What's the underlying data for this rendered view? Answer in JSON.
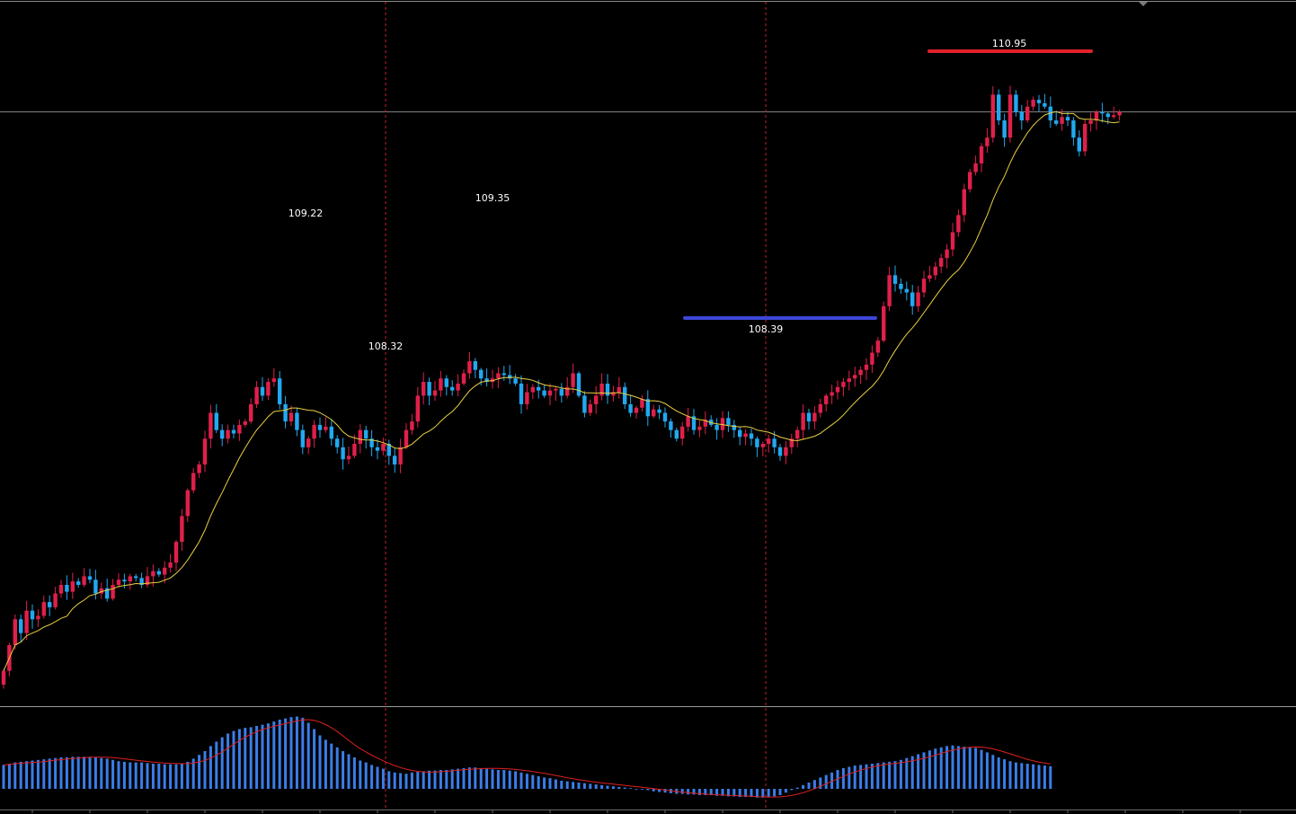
{
  "chart_data": {
    "type": "candlestick",
    "title": "",
    "xlabel": "",
    "ylabel": "",
    "ylim": [
      107.3,
      111.4
    ],
    "colors": {
      "background": "#000000",
      "bull": "#e0204a",
      "bear": "#22a8f0",
      "ma_line": "#e8d040",
      "osc_bar": "#3a7ee8",
      "osc_signal": "#e02020",
      "swing_high_marker": "#e0202a",
      "swing_low_marker": "#3c46d8",
      "vertical_marker": "#c02030",
      "crosshair": "#808080"
    },
    "series": [
      {
        "kind": "candles",
        "closes": [
          107.5,
          107.65,
          107.8,
          107.72,
          107.85,
          107.8,
          107.82,
          107.9,
          107.87,
          107.95,
          108.0,
          107.96,
          108.02,
          108.0,
          108.05,
          108.03,
          107.95,
          107.98,
          107.92,
          108.0,
          108.03,
          108.02,
          108.05,
          108.04,
          108.0,
          108.05,
          108.08,
          108.06,
          108.1,
          108.13,
          108.25,
          108.4,
          108.55,
          108.65,
          108.7,
          108.85,
          109.0,
          108.9,
          108.85,
          108.9,
          108.88,
          108.93,
          108.95,
          109.05,
          109.15,
          109.1,
          109.18,
          109.2,
          109.05,
          108.95,
          109.0,
          108.9,
          108.8,
          108.85,
          108.93,
          108.9,
          108.92,
          108.85,
          108.8,
          108.73,
          108.75,
          108.82,
          108.9,
          108.85,
          108.8,
          108.78,
          108.82,
          108.75,
          108.7,
          108.8,
          108.9,
          108.95,
          109.1,
          109.18,
          109.1,
          109.13,
          109.2,
          109.15,
          109.13,
          109.17,
          109.23,
          109.3,
          109.25,
          109.2,
          109.18,
          109.2,
          109.23,
          109.22,
          109.2,
          109.17,
          109.05,
          109.12,
          109.15,
          109.13,
          109.1,
          109.13,
          109.14,
          109.1,
          109.15,
          109.23,
          109.1,
          109.0,
          109.05,
          109.1,
          109.17,
          109.1,
          109.12,
          109.15,
          109.05,
          109.0,
          109.03,
          109.08,
          108.98,
          109.02,
          109.0,
          108.95,
          108.9,
          108.85,
          108.92,
          108.98,
          108.9,
          108.92,
          108.96,
          108.93,
          108.9,
          108.97,
          108.93,
          108.9,
          108.86,
          108.88,
          108.85,
          108.8,
          108.82,
          108.85,
          108.8,
          108.75,
          108.8,
          108.85,
          108.9,
          109.0,
          108.95,
          109.0,
          109.05,
          109.1,
          109.12,
          109.15,
          109.18,
          109.2,
          109.22,
          109.25,
          109.28,
          109.35,
          109.42,
          109.62,
          109.8,
          109.75,
          109.72,
          109.7,
          109.62,
          109.7,
          109.78,
          109.8,
          109.85,
          109.9,
          109.95,
          110.05,
          110.15,
          110.3,
          110.4,
          110.45,
          110.55,
          110.6,
          110.85,
          110.7,
          110.6,
          110.85,
          110.75,
          110.7,
          110.78,
          110.82,
          110.8,
          110.78,
          110.7,
          110.68,
          110.72,
          110.7,
          110.6,
          110.52,
          110.68,
          110.7,
          110.75,
          110.74,
          110.72,
          110.73,
          110.75
        ],
        "label_values": {
          "high_1": "109.22",
          "low_1": "108.32",
          "high_2": "109.35",
          "low_2": "108.39",
          "high_3": "110.95"
        }
      },
      {
        "kind": "moving_average",
        "smoothing": 12
      },
      {
        "kind": "oscillator_histogram",
        "values": [
          0.38,
          0.4,
          0.42,
          0.43,
          0.44,
          0.45,
          0.46,
          0.47,
          0.48,
          0.49,
          0.5,
          0.5,
          0.51,
          0.51,
          0.51,
          0.51,
          0.5,
          0.49,
          0.48,
          0.46,
          0.44,
          0.43,
          0.42,
          0.42,
          0.42,
          0.41,
          0.4,
          0.4,
          0.39,
          0.39,
          0.39,
          0.4,
          0.43,
          0.48,
          0.54,
          0.6,
          0.68,
          0.75,
          0.82,
          0.88,
          0.92,
          0.95,
          0.97,
          0.98,
          1.0,
          1.02,
          1.04,
          1.07,
          1.1,
          1.12,
          1.14,
          1.15,
          1.13,
          1.05,
          0.95,
          0.85,
          0.78,
          0.72,
          0.66,
          0.6,
          0.55,
          0.5,
          0.45,
          0.42,
          0.38,
          0.35,
          0.32,
          0.28,
          0.26,
          0.25,
          0.24,
          0.26,
          0.27,
          0.28,
          0.29,
          0.29,
          0.3,
          0.3,
          0.31,
          0.32,
          0.33,
          0.34,
          0.34,
          0.33,
          0.32,
          0.31,
          0.3,
          0.3,
          0.29,
          0.28,
          0.26,
          0.24,
          0.22,
          0.2,
          0.18,
          0.17,
          0.15,
          0.13,
          0.12,
          0.11,
          0.1,
          0.09,
          0.08,
          0.07,
          0.06,
          0.05,
          0.04,
          0.03,
          0.02,
          0.01,
          0.0,
          -0.01,
          -0.02,
          -0.04,
          -0.05,
          -0.06,
          -0.07,
          -0.08,
          -0.08,
          -0.09,
          -0.09,
          -0.1,
          -0.1,
          -0.1,
          -0.11,
          -0.11,
          -0.12,
          -0.12,
          -0.13,
          -0.13,
          -0.13,
          -0.14,
          -0.14,
          -0.13,
          -0.12,
          -0.1,
          -0.06,
          -0.02,
          0.02,
          0.06,
          0.1,
          0.14,
          0.18,
          0.22,
          0.26,
          0.3,
          0.33,
          0.35,
          0.37,
          0.38,
          0.39,
          0.4,
          0.41,
          0.42,
          0.43,
          0.44,
          0.46,
          0.49,
          0.52,
          0.55,
          0.58,
          0.61,
          0.64,
          0.66,
          0.68,
          0.69,
          0.68,
          0.67,
          0.66,
          0.65,
          0.62,
          0.58,
          0.54,
          0.5,
          0.47,
          0.44,
          0.42,
          0.41,
          0.4,
          0.39,
          0.38,
          0.37,
          0.36
        ],
        "range": [
          -0.2,
          1.2
        ],
        "signal_smoothing": 8
      }
    ]
  }
}
